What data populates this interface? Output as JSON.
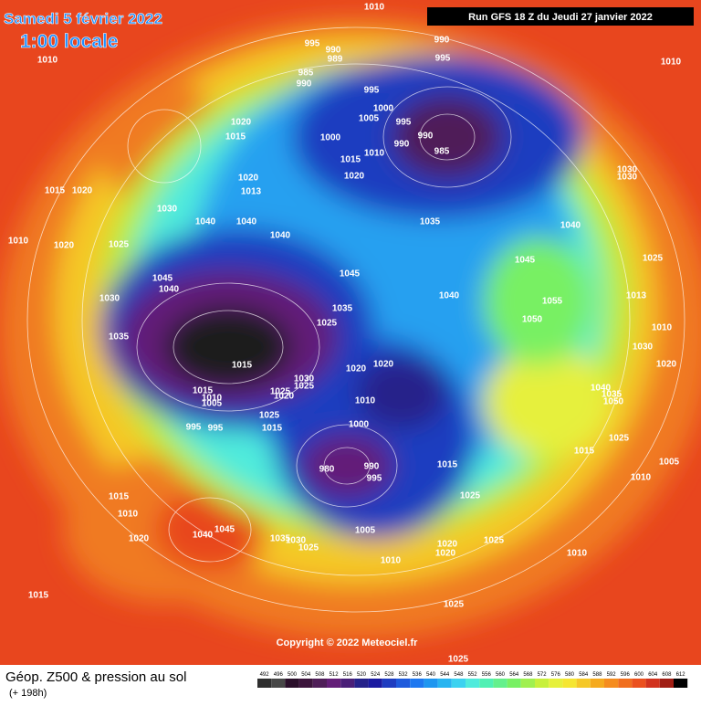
{
  "header": {
    "title": "Samedi 5 février 2022",
    "subtitle": "1:00 locale",
    "run": "Run GFS 18 Z du Jeudi 27 janvier 2022"
  },
  "copyright": "Copyright © 2022 Meteociel.fr",
  "footer": {
    "title": "Géop. Z500 & pression au sol",
    "lead": "(+ 198h)"
  },
  "scale": {
    "values": [
      492,
      496,
      500,
      504,
      508,
      512,
      516,
      520,
      524,
      528,
      532,
      536,
      540,
      544,
      548,
      552,
      556,
      560,
      564,
      568,
      572,
      576,
      580,
      584,
      588,
      592,
      596,
      600,
      604,
      608,
      612
    ],
    "colors": [
      "#2e2e2e",
      "#474747",
      "#2a0f2a",
      "#3c143c",
      "#4f1e58",
      "#641e78",
      "#4a1f78",
      "#25228a",
      "#1a1aa0",
      "#1e3cc0",
      "#1e5adc",
      "#1e78f0",
      "#1e96f0",
      "#28b4f0",
      "#3cd2f0",
      "#50ebdc",
      "#50f0b4",
      "#64f08c",
      "#78f064",
      "#a0f050",
      "#c8f03c",
      "#e6f03c",
      "#f5e632",
      "#f5c828",
      "#f5aa1e",
      "#f58c1e",
      "#f06e1e",
      "#eb501e",
      "#d2321e",
      "#a01e14",
      "#000000"
    ]
  },
  "isobar_labels": [
    1010,
    990,
    995,
    990,
    989,
    995,
    1010,
    1010,
    985,
    990,
    995,
    1000,
    1005,
    995,
    1020,
    1015,
    990,
    1000,
    990,
    985,
    1010,
    1015,
    1030,
    1030,
    1020,
    1020,
    1013,
    1015,
    1020,
    1030,
    1040,
    1040,
    1035,
    1040,
    1010,
    1020,
    1025,
    1040,
    1045,
    1025,
    1045,
    1040,
    1045,
    1030,
    1040,
    1013,
    1055,
    1035,
    1025,
    1050,
    1010,
    1035,
    1030,
    1015,
    1020,
    1020,
    1020,
    1030,
    1025,
    1025,
    1020,
    1015,
    1010,
    1005,
    1040,
    1035,
    1050,
    1010,
    995,
    995,
    1025,
    1015,
    1000,
    1025,
    1015,
    980,
    990,
    995,
    1015,
    1005,
    1010,
    1025,
    1015,
    1010,
    1045,
    1040,
    1020,
    1035,
    1030,
    1025,
    1005,
    1025,
    1020,
    1020,
    1010,
    1010,
    1015,
    1025,
    1025
  ]
}
